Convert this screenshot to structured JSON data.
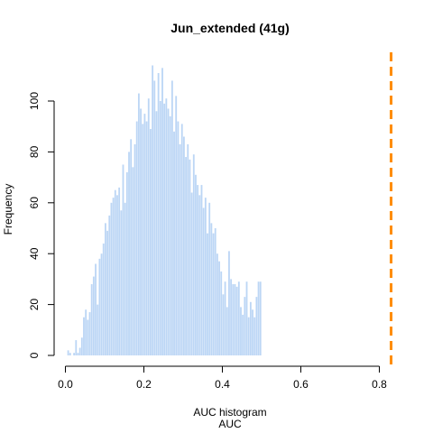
{
  "chart_data": {
    "type": "bar",
    "title": "Jun_extended (41g)",
    "xlabel_line1": "AUC histogram",
    "xlabel_line2": "AUC",
    "ylabel": "Frequency",
    "xlim": [
      0.0,
      0.8
    ],
    "ylim": [
      0,
      100
    ],
    "xticks": [
      "0.0",
      "0.2",
      "0.4",
      "0.6",
      "0.8"
    ],
    "yticks": [
      "0",
      "20",
      "40",
      "60",
      "80",
      "100"
    ],
    "bin_start": 0.0,
    "bin_width": 0.005,
    "bar_color": "#bcd6f5",
    "reference_line": {
      "x": 0.83,
      "color": "#ff8c00",
      "style": "dashed"
    },
    "values": [
      0,
      2,
      1,
      0,
      1,
      6,
      1,
      3,
      7,
      15,
      18,
      14,
      17,
      28,
      31,
      36,
      20,
      38,
      40,
      44,
      52,
      49,
      55,
      60,
      62,
      65,
      63,
      66,
      57,
      75,
      60,
      72,
      80,
      85,
      74,
      83,
      92,
      103,
      97,
      91,
      95,
      92,
      101,
      89,
      114,
      108,
      96,
      111,
      100,
      113,
      99,
      101,
      97,
      94,
      108,
      88,
      102,
      92,
      83,
      91,
      86,
      78,
      83,
      77,
      64,
      79,
      71,
      67,
      63,
      67,
      58,
      62,
      48,
      60,
      52,
      48,
      50,
      40,
      37,
      33,
      24,
      29,
      19,
      41,
      30,
      28,
      28,
      27,
      29,
      19,
      16,
      23,
      29,
      15,
      21,
      18,
      15,
      23,
      29,
      29
    ]
  }
}
